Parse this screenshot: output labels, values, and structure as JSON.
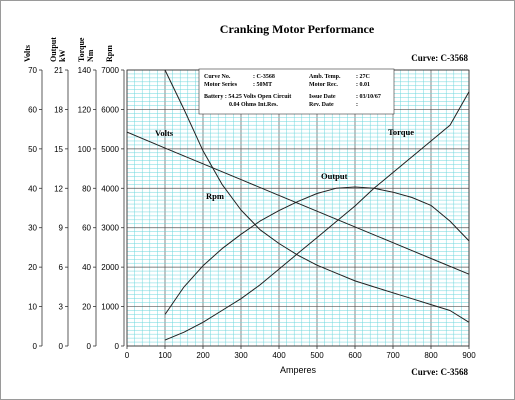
{
  "chart_data": {
    "type": "line",
    "title": "Cranking Motor Performance",
    "curve_label": "Curve: C-3568",
    "xlabel": "Amperes",
    "xlim": [
      0,
      900
    ],
    "x_ticks": [
      "0",
      "100",
      "200",
      "300",
      "400",
      "500",
      "600",
      "700",
      "800",
      "900"
    ],
    "axes": [
      {
        "label": "Volts",
        "unit": "",
        "lim": [
          0,
          70
        ],
        "ticks": [
          "0",
          "10",
          "20",
          "30",
          "40",
          "50",
          "60",
          "70"
        ]
      },
      {
        "label": "Output",
        "unit": "kW",
        "lim": [
          0,
          21
        ],
        "ticks": [
          "0",
          "3",
          "6",
          "9",
          "12",
          "15",
          "18",
          "21"
        ]
      },
      {
        "label": "Torque",
        "unit": "Nm",
        "lim": [
          0,
          140
        ],
        "ticks": [
          "0",
          "20",
          "40",
          "60",
          "80",
          "100",
          "120",
          "140"
        ]
      },
      {
        "label": "Rpm",
        "unit": "",
        "lim": [
          0,
          7000
        ],
        "ticks": [
          "0",
          "1000",
          "2000",
          "3000",
          "4000",
          "5000",
          "6000",
          "7000"
        ]
      }
    ],
    "grid": true,
    "series": [
      {
        "name": "Volts",
        "axis": "Volts",
        "x": [
          0,
          100,
          200,
          300,
          400,
          500,
          600,
          700,
          800,
          900
        ],
        "y": [
          54.25,
          50.2,
          46.2,
          42.2,
          38.2,
          34.2,
          30.2,
          26.2,
          22.2,
          18.2
        ]
      },
      {
        "name": "Rpm",
        "axis": "Rpm",
        "x": [
          100,
          150,
          200,
          250,
          300,
          350,
          400,
          450,
          500,
          550,
          600,
          650,
          700,
          750,
          800,
          850,
          900
        ],
        "y": [
          7000,
          6000,
          4950,
          4100,
          3450,
          2950,
          2600,
          2300,
          2050,
          1850,
          1650,
          1500,
          1350,
          1200,
          1050,
          900,
          600
        ]
      },
      {
        "name": "Output",
        "axis": "Output",
        "x": [
          100,
          150,
          200,
          250,
          300,
          350,
          400,
          450,
          500,
          550,
          600,
          650,
          700,
          750,
          800,
          850,
          900
        ],
        "y": [
          2.4,
          4.5,
          6.1,
          7.4,
          8.5,
          9.5,
          10.3,
          11.0,
          11.6,
          12.0,
          12.1,
          12.0,
          11.7,
          11.3,
          10.7,
          9.5,
          8.0
        ]
      },
      {
        "name": "Torque",
        "axis": "Torque",
        "x": [
          100,
          150,
          200,
          250,
          300,
          350,
          400,
          450,
          500,
          550,
          600,
          650,
          700,
          750,
          800,
          850,
          900
        ],
        "y": [
          3,
          7,
          12,
          18,
          24,
          31,
          39,
          47,
          55,
          63,
          71,
          80,
          88,
          96,
          104,
          112,
          129
        ]
      }
    ]
  },
  "info_box": {
    "curve_no_label": "Curve No.",
    "curve_no": ": C-3568",
    "amb_temp_label": "Amb. Temp.",
    "amb_temp": ": 27C",
    "motor_series_label": "Motor Series",
    "motor_series": ": 50MT",
    "motor_rec_label": "Motor Rec.",
    "motor_rec": ": 0.01",
    "battery_line": "Battery : 54.25 Volts Open Circuit",
    "resistance_line": "0.04 Ohms Int.Res.",
    "issue_date_label": "Issue Date",
    "issue_date": ": 03/10/67",
    "rev_date_label": "Rev. Date",
    "rev_date": ":"
  },
  "colors": {
    "grid": "#6fd7dd",
    "plot_bg": "#ffffff",
    "curve": "#222222"
  }
}
